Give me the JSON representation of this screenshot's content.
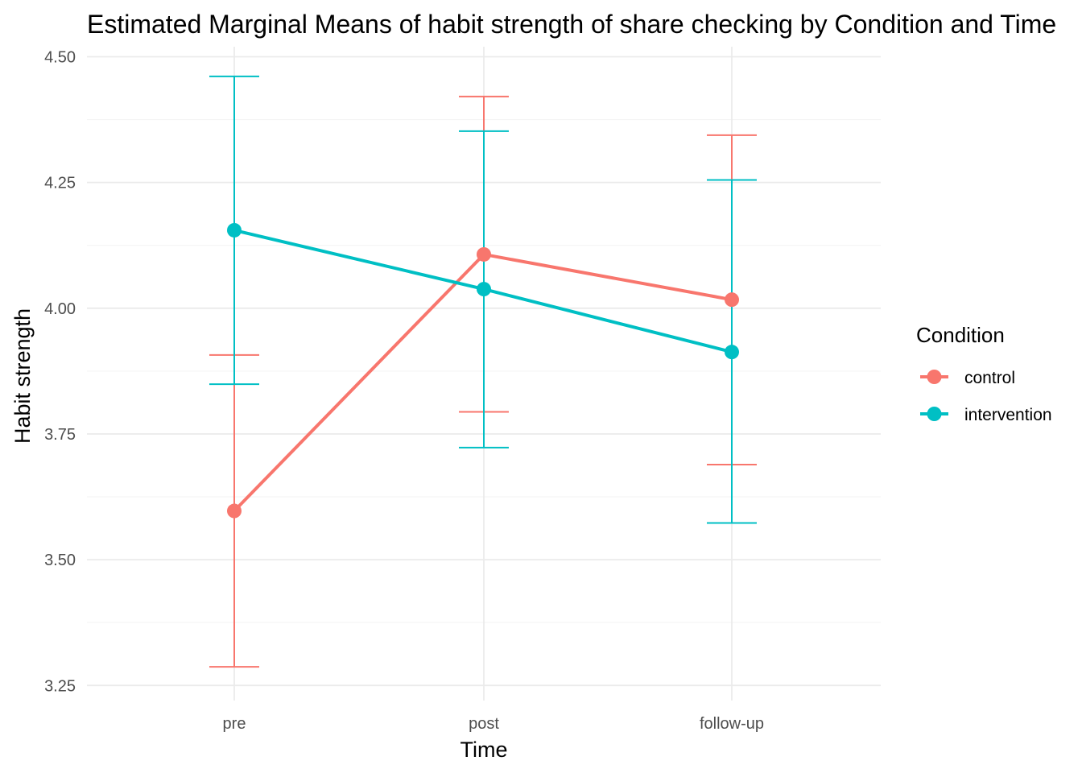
{
  "chart_data": {
    "type": "line",
    "title": "Estimated Marginal Means of habit strength of share checking by Condition and Time",
    "xlabel": "Time",
    "ylabel": "Habit strength",
    "categories": [
      "pre",
      "post",
      "follow-up"
    ],
    "ylim": [
      3.22,
      4.52
    ],
    "yticks": [
      3.25,
      3.5,
      3.75,
      4.0,
      4.25,
      4.5
    ],
    "ytick_labels": [
      "3.25",
      "3.50",
      "3.75",
      "4.00",
      "4.25",
      "4.50"
    ],
    "grid": true,
    "legend": {
      "title": "Condition",
      "position": "right"
    },
    "series": [
      {
        "name": "control",
        "color": "#F8766D",
        "values": [
          3.597,
          4.107,
          4.017
        ],
        "lower": [
          3.287,
          3.794,
          3.689
        ],
        "upper": [
          3.907,
          4.421,
          4.344
        ]
      },
      {
        "name": "intervention",
        "color": "#00BFC4",
        "values": [
          4.155,
          4.038,
          3.913
        ],
        "lower": [
          3.849,
          3.723,
          3.573
        ],
        "upper": [
          4.461,
          4.352,
          4.255
        ]
      }
    ]
  }
}
